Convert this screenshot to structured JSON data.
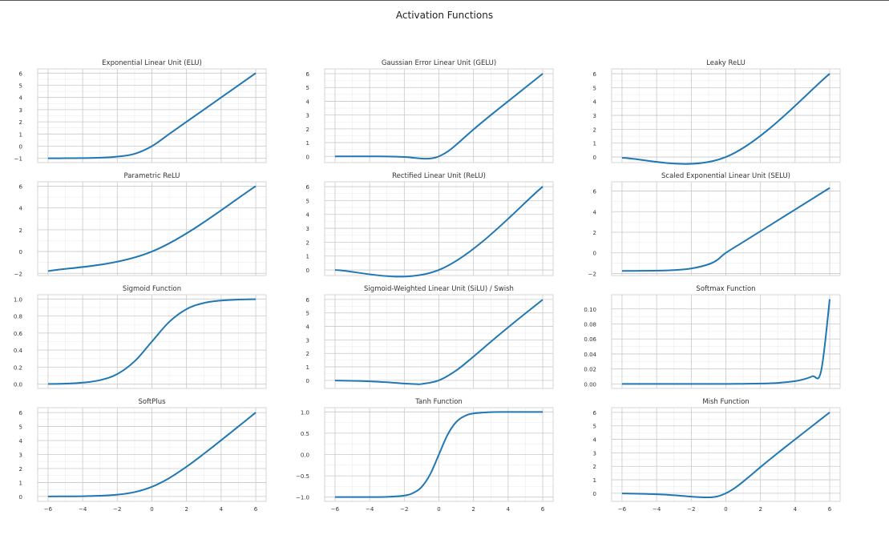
{
  "figure": {
    "title": "Activation Functions"
  },
  "style": {
    "line_color": "#1f77b4",
    "major_grid": "#c8c8c8",
    "minor_grid": "#ececec",
    "spine": "#cccccc"
  },
  "chart_data": [
    {
      "type": "line",
      "title": "Exponential Linear Unit (ELU)",
      "x": [
        -6,
        -5,
        -4,
        -3,
        -2,
        -1,
        0,
        1,
        2,
        3,
        4,
        5,
        6
      ],
      "y": [
        -1.0,
        -0.99,
        -0.98,
        -0.95,
        -0.86,
        -0.63,
        0,
        1,
        2,
        3,
        4,
        5,
        6
      ],
      "xlim": [
        -6.6,
        6.6
      ],
      "ylim": [
        -1.35,
        6.35
      ],
      "xticks": [
        -6,
        -4,
        -2,
        0,
        2,
        4,
        6
      ],
      "yticks": [
        -1,
        0,
        1,
        2,
        3,
        4,
        5,
        6
      ],
      "ytick_labels": [
        "−1",
        "0",
        "1",
        "2",
        "3",
        "4",
        "5",
        "6"
      ],
      "xtick_labels": []
    },
    {
      "type": "line",
      "title": "Gaussian Error Linear Unit (GELU)",
      "x": [
        -6,
        -5,
        -4,
        -3,
        -2,
        -1.5,
        -1,
        -0.75,
        -0.5,
        -0.25,
        0,
        0.5,
        1,
        1.5,
        2,
        3,
        4,
        5,
        6
      ],
      "y": [
        0,
        0,
        0,
        -0.004,
        -0.045,
        -0.1,
        -0.159,
        -0.17,
        -0.154,
        -0.1,
        0,
        0.346,
        0.841,
        1.4,
        1.955,
        2.996,
        4,
        5,
        6
      ],
      "xlim": [
        -6.6,
        6.6
      ],
      "ylim": [
        -0.45,
        6.35
      ],
      "xticks": [
        -6,
        -4,
        -2,
        0,
        2,
        4,
        6
      ],
      "yticks": [
        0,
        1,
        2,
        3,
        4,
        5,
        6
      ],
      "ytick_labels": [
        "0",
        "1",
        "2",
        "3",
        "4",
        "5",
        "6"
      ],
      "xtick_labels": []
    },
    {
      "type": "line",
      "title": "Leaky ReLU",
      "x": [
        -6,
        0,
        6
      ],
      "y": [
        -0.06,
        0,
        6
      ],
      "xlim": [
        -6.6,
        6.6
      ],
      "ylim": [
        -0.4,
        6.35
      ],
      "xticks": [
        -6,
        -4,
        -2,
        0,
        2,
        4,
        6
      ],
      "yticks": [
        0,
        1,
        2,
        3,
        4,
        5,
        6
      ],
      "ytick_labels": [
        "0",
        "1",
        "2",
        "3",
        "4",
        "5",
        "6"
      ],
      "xtick_labels": []
    },
    {
      "type": "line",
      "title": "Parametric ReLU",
      "x": [
        -6,
        0,
        6
      ],
      "y": [
        -1.8,
        0,
        6
      ],
      "xlim": [
        -6.6,
        6.6
      ],
      "ylim": [
        -2.2,
        6.4
      ],
      "xticks": [
        -6,
        -4,
        -2,
        0,
        2,
        4,
        6
      ],
      "yticks": [
        -2,
        0,
        2,
        4,
        6
      ],
      "ytick_labels": [
        "−2",
        "0",
        "2",
        "4",
        "6"
      ],
      "xtick_labels": []
    },
    {
      "type": "line",
      "title": "Rectified Linear Unit (ReLU)",
      "x": [
        -6,
        0,
        6
      ],
      "y": [
        0,
        0,
        6
      ],
      "xlim": [
        -6.6,
        6.6
      ],
      "ylim": [
        -0.4,
        6.35
      ],
      "xticks": [
        -6,
        -4,
        -2,
        0,
        2,
        4,
        6
      ],
      "yticks": [
        0,
        1,
        2,
        3,
        4,
        5,
        6
      ],
      "ytick_labels": [
        "0",
        "1",
        "2",
        "3",
        "4",
        "5",
        "6"
      ],
      "xtick_labels": []
    },
    {
      "type": "line",
      "title": "Scaled Exponential Linear Unit (SELU)",
      "x": [
        -6,
        -5,
        -4,
        -3,
        -2,
        -1,
        -0.5,
        0,
        1,
        2,
        3,
        4,
        5,
        6
      ],
      "y": [
        -1.754,
        -1.746,
        -1.726,
        -1.67,
        -1.52,
        -1.111,
        -0.69,
        0,
        1.051,
        2.101,
        3.152,
        4.203,
        5.254,
        6.304
      ],
      "xlim": [
        -6.6,
        6.6
      ],
      "ylim": [
        -2.2,
        6.9
      ],
      "xticks": [
        -6,
        -4,
        -2,
        0,
        2,
        4,
        6
      ],
      "yticks": [
        -2,
        0,
        2,
        4,
        6
      ],
      "ytick_labels": [
        "−2",
        "0",
        "2",
        "4",
        "6"
      ],
      "xtick_labels": []
    },
    {
      "type": "line",
      "title": "Sigmoid Function",
      "x": [
        -6,
        -5,
        -4,
        -3,
        -2,
        -1,
        0,
        1,
        2,
        3,
        4,
        5,
        6
      ],
      "y": [
        0.0025,
        0.0067,
        0.018,
        0.047,
        0.119,
        0.269,
        0.5,
        0.731,
        0.881,
        0.953,
        0.982,
        0.993,
        0.9975
      ],
      "xlim": [
        -6.6,
        6.6
      ],
      "ylim": [
        -0.05,
        1.05
      ],
      "xticks": [
        -6,
        -4,
        -2,
        0,
        2,
        4,
        6
      ],
      "yticks": [
        0,
        0.2,
        0.4,
        0.6,
        0.8,
        1.0
      ],
      "ytick_labels": [
        "0.0",
        "0.2",
        "0.4",
        "0.6",
        "0.8",
        "1.0"
      ],
      "xtick_labels": []
    },
    {
      "type": "line",
      "title": "Sigmoid-Weighted Linear Unit (SiLU) / Swish",
      "x": [
        -6,
        -5,
        -4,
        -3,
        -2,
        -1.28,
        -1,
        0,
        1,
        2,
        3,
        4,
        5,
        6
      ],
      "y": [
        -0.015,
        -0.034,
        -0.072,
        -0.142,
        -0.238,
        -0.278,
        -0.269,
        0,
        0.731,
        1.762,
        2.858,
        3.928,
        4.967,
        5.985
      ],
      "xlim": [
        -6.6,
        6.6
      ],
      "ylim": [
        -0.6,
        6.35
      ],
      "xticks": [
        -6,
        -4,
        -2,
        0,
        2,
        4,
        6
      ],
      "yticks": [
        0,
        1,
        2,
        3,
        4,
        5,
        6
      ],
      "ytick_labels": [
        "0",
        "1",
        "2",
        "3",
        "4",
        "5",
        "6"
      ],
      "xtick_labels": []
    },
    {
      "type": "line",
      "title": "Softmax Function",
      "x": [
        -6,
        -4,
        -2,
        0,
        1,
        2,
        3,
        4,
        4.5,
        5,
        5.5,
        6
      ],
      "y": [
        0,
        0,
        1e-05,
        7e-05,
        0.0002,
        0.0005,
        0.0014,
        0.0038,
        0.0062,
        0.0103,
        0.017,
        0.113
      ],
      "xlim": [
        -6.6,
        6.6
      ],
      "ylim": [
        -0.006,
        0.119
      ],
      "xticks": [
        -6,
        -4,
        -2,
        0,
        2,
        4,
        6
      ],
      "yticks": [
        0,
        0.02,
        0.04,
        0.06,
        0.08,
        0.1
      ],
      "ytick_labels": [
        "0.00",
        "0.02",
        "0.04",
        "0.06",
        "0.08",
        "0.10"
      ],
      "xtick_labels": []
    },
    {
      "type": "line",
      "title": "SoftPlus",
      "x": [
        -6,
        -5,
        -4,
        -3,
        -2,
        -1,
        0,
        1,
        2,
        3,
        4,
        5,
        6
      ],
      "y": [
        0.0025,
        0.0067,
        0.018,
        0.049,
        0.127,
        0.313,
        0.693,
        1.313,
        2.127,
        3.049,
        4.018,
        5.007,
        6.0025
      ],
      "xlim": [
        -6.6,
        6.6
      ],
      "ylim": [
        -0.35,
        6.35
      ],
      "xticks": [
        -6,
        -4,
        -2,
        0,
        2,
        4,
        6
      ],
      "yticks": [
        0,
        1,
        2,
        3,
        4,
        5,
        6
      ],
      "ytick_labels": [
        "0",
        "1",
        "2",
        "3",
        "4",
        "5",
        "6"
      ],
      "xtick_labels": [
        "−6",
        "−4",
        "−2",
        "0",
        "2",
        "4",
        "6"
      ]
    },
    {
      "type": "line",
      "title": "Tanh Function",
      "x": [
        -6,
        -5,
        -4,
        -3,
        -2,
        -1.5,
        -1,
        -0.5,
        0,
        0.5,
        1,
        1.5,
        2,
        3,
        4,
        5,
        6
      ],
      "y": [
        -1,
        -0.9999,
        -0.9993,
        -0.995,
        -0.964,
        -0.905,
        -0.762,
        -0.462,
        0,
        0.462,
        0.762,
        0.905,
        0.964,
        0.995,
        0.9993,
        0.9999,
        1
      ],
      "xlim": [
        -6.6,
        6.6
      ],
      "ylim": [
        -1.1,
        1.1
      ],
      "xticks": [
        -6,
        -4,
        -2,
        0,
        2,
        4,
        6
      ],
      "yticks": [
        -1.0,
        -0.5,
        0.0,
        0.5,
        1.0
      ],
      "ytick_labels": [
        "−1.0",
        "−0.5",
        "0.0",
        "0.5",
        "1.0"
      ],
      "xtick_labels": [
        "−6",
        "−4",
        "−2",
        "0",
        "2",
        "4",
        "6"
      ]
    },
    {
      "type": "line",
      "title": "Mish Function",
      "x": [
        -6,
        -5,
        -4,
        -3,
        -2,
        -1.5,
        -1,
        -0.5,
        0,
        0.5,
        1,
        1.5,
        2,
        3,
        4,
        5,
        6
      ],
      "y": [
        -0.015,
        -0.034,
        -0.073,
        -0.146,
        -0.252,
        -0.289,
        -0.303,
        -0.236,
        0,
        0.375,
        0.865,
        1.4,
        1.944,
        2.987,
        3.997,
        5,
        6
      ],
      "xlim": [
        -6.6,
        6.6
      ],
      "ylim": [
        -0.6,
        6.35
      ],
      "xticks": [
        -6,
        -4,
        -2,
        0,
        2,
        4,
        6
      ],
      "yticks": [
        0,
        1,
        2,
        3,
        4,
        5,
        6
      ],
      "ytick_labels": [
        "0",
        "1",
        "2",
        "3",
        "4",
        "5",
        "6"
      ],
      "xtick_labels": [
        "−6",
        "−4",
        "−2",
        "0",
        "2",
        "4",
        "6"
      ]
    }
  ]
}
